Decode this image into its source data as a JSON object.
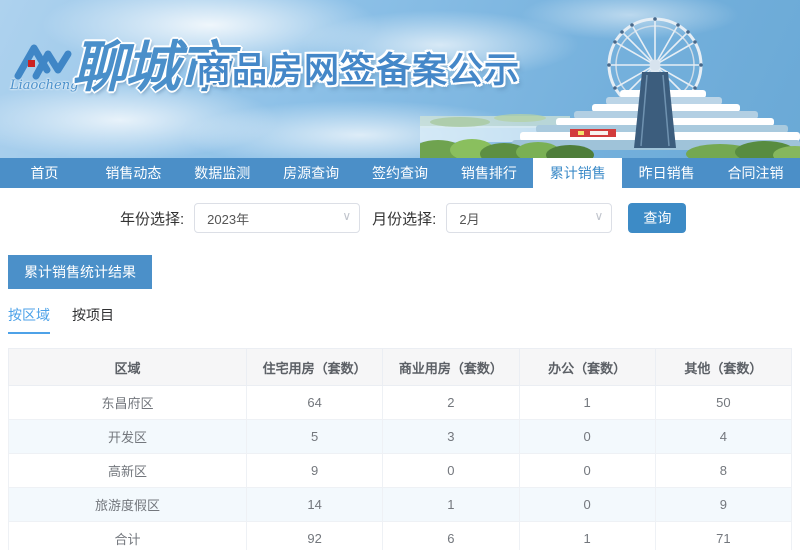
{
  "header": {
    "logo_script": "Liaocheng",
    "city_name": "聊城市",
    "title": "商品房网签备案公示"
  },
  "nav": {
    "items": [
      {
        "label": "首页",
        "active": false
      },
      {
        "label": "销售动态",
        "active": false
      },
      {
        "label": "数据监测",
        "active": false
      },
      {
        "label": "房源查询",
        "active": false
      },
      {
        "label": "签约查询",
        "active": false
      },
      {
        "label": "销售排行",
        "active": false
      },
      {
        "label": "累计销售",
        "active": true
      },
      {
        "label": "昨日销售",
        "active": false
      },
      {
        "label": "合同注销",
        "active": false
      }
    ]
  },
  "filters": {
    "year_label": "年份选择:",
    "year_value": "2023年",
    "month_label": "月份选择:",
    "month_value": "2月",
    "query_button": "查询"
  },
  "section": {
    "title": "累计销售统计结果",
    "tabs": [
      {
        "label": "按区域",
        "active": true
      },
      {
        "label": "按项目",
        "active": false
      }
    ]
  },
  "table": {
    "columns": [
      "区域",
      "住宅用房（套数）",
      "商业用房（套数）",
      "办公（套数）",
      "其他（套数）"
    ],
    "rows": [
      [
        "东昌府区",
        "64",
        "2",
        "1",
        "50"
      ],
      [
        "开发区",
        "5",
        "3",
        "0",
        "4"
      ],
      [
        "高新区",
        "9",
        "0",
        "0",
        "8"
      ],
      [
        "旅游度假区",
        "14",
        "1",
        "0",
        "9"
      ],
      [
        "合计",
        "92",
        "6",
        "1",
        "71"
      ]
    ]
  },
  "icons": {
    "chevron_down": "∨"
  },
  "colors": {
    "nav_blue": "#4b8fc8",
    "active_tab_text": "#3c8bc8",
    "button_blue": "#3d8bc6",
    "section_header_bg": "#4b90c9",
    "subtab_active": "#4da2e8",
    "table_header_bg": "#f6f6f7",
    "stripe_row_bg": "#f3f9fd"
  }
}
